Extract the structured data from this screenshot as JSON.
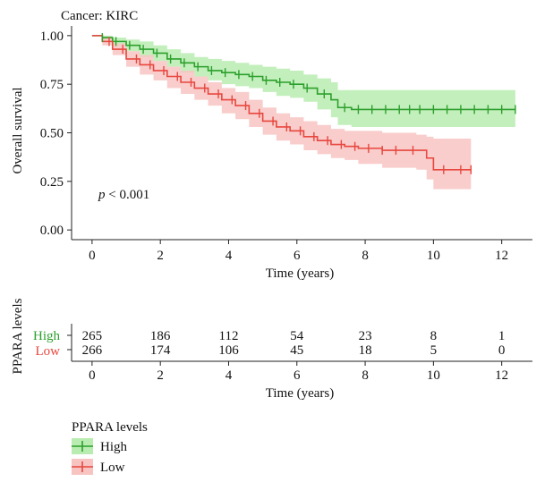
{
  "chart_data": {
    "type": "line",
    "title": "Cancer: KIRC",
    "xlabel": "Time (years)",
    "ylabel": "Overall survival",
    "xlim": [
      -0.6,
      12.9
    ],
    "ylim": [
      -0.05,
      1.05
    ],
    "x_ticks": [
      "0",
      "2",
      "4",
      "6",
      "8",
      "10",
      "12"
    ],
    "y_ticks": [
      "0.00",
      "0.25",
      "0.50",
      "0.75",
      "1.00"
    ],
    "annotation_p": "p",
    "annotation_rest": " < 0.001",
    "colors": {
      "High": "#2ca02c",
      "Low": "#e8473f",
      "High_ci": "#b9ecb0",
      "Low_ci": "#f7c4c2"
    },
    "series": [
      {
        "name": "High",
        "x": [
          0,
          0.3,
          0.6,
          1.0,
          1.4,
          1.8,
          2.2,
          2.6,
          3.0,
          3.4,
          3.8,
          4.2,
          4.6,
          5.0,
          5.4,
          5.8,
          6.2,
          6.6,
          7.0,
          7.2,
          7.6,
          8.0,
          9.0,
          10.0,
          11.0,
          12.4
        ],
        "y": [
          1.0,
          0.99,
          0.97,
          0.95,
          0.93,
          0.91,
          0.88,
          0.86,
          0.84,
          0.82,
          0.81,
          0.8,
          0.79,
          0.77,
          0.76,
          0.75,
          0.73,
          0.7,
          0.67,
          0.63,
          0.62,
          0.62,
          0.62,
          0.62,
          0.62,
          0.62
        ],
        "ci_upper": [
          1.0,
          1.0,
          0.99,
          0.98,
          0.97,
          0.95,
          0.93,
          0.91,
          0.89,
          0.88,
          0.87,
          0.86,
          0.85,
          0.84,
          0.83,
          0.82,
          0.8,
          0.78,
          0.76,
          0.72,
          0.72,
          0.72,
          0.72,
          0.72,
          0.72,
          0.72
        ],
        "ci_lower": [
          1.0,
          0.97,
          0.95,
          0.92,
          0.89,
          0.87,
          0.84,
          0.81,
          0.79,
          0.77,
          0.75,
          0.74,
          0.73,
          0.71,
          0.69,
          0.68,
          0.66,
          0.62,
          0.58,
          0.54,
          0.53,
          0.53,
          0.53,
          0.53,
          0.53,
          0.53
        ],
        "censor_x": [
          0.3,
          0.7,
          1.1,
          1.5,
          1.9,
          2.3,
          2.7,
          3.1,
          3.5,
          3.9,
          4.3,
          4.7,
          5.1,
          5.5,
          5.9,
          6.3,
          6.8,
          7.4,
          7.8,
          8.2,
          8.6,
          9.0,
          9.3,
          9.6,
          10.0,
          10.4,
          10.8,
          11.2,
          11.6,
          12.0,
          12.4
        ],
        "at_risk": [
          "265",
          "186",
          "112",
          "54",
          "23",
          "8",
          "1"
        ]
      },
      {
        "name": "Low",
        "x": [
          0,
          0.3,
          0.6,
          1.0,
          1.4,
          1.8,
          2.2,
          2.6,
          3.0,
          3.4,
          3.8,
          4.2,
          4.6,
          5.0,
          5.4,
          5.8,
          6.2,
          6.6,
          7.0,
          7.4,
          7.8,
          8.5,
          9.0,
          9.5,
          9.8,
          10.0,
          11.1
        ],
        "y": [
          1.0,
          0.97,
          0.93,
          0.88,
          0.85,
          0.82,
          0.79,
          0.76,
          0.73,
          0.7,
          0.67,
          0.64,
          0.6,
          0.56,
          0.53,
          0.51,
          0.48,
          0.46,
          0.44,
          0.43,
          0.42,
          0.41,
          0.41,
          0.41,
          0.37,
          0.31,
          0.31
        ],
        "ci_upper": [
          1.0,
          0.99,
          0.96,
          0.92,
          0.9,
          0.87,
          0.84,
          0.82,
          0.79,
          0.76,
          0.73,
          0.71,
          0.67,
          0.63,
          0.6,
          0.58,
          0.56,
          0.54,
          0.52,
          0.51,
          0.51,
          0.5,
          0.5,
          0.49,
          0.48,
          0.47,
          0.47
        ],
        "ci_lower": [
          1.0,
          0.95,
          0.9,
          0.84,
          0.8,
          0.77,
          0.73,
          0.7,
          0.67,
          0.64,
          0.6,
          0.57,
          0.53,
          0.49,
          0.46,
          0.44,
          0.41,
          0.39,
          0.37,
          0.36,
          0.34,
          0.32,
          0.32,
          0.31,
          0.26,
          0.21,
          0.21
        ],
        "censor_x": [
          0.5,
          0.9,
          1.3,
          1.7,
          2.1,
          2.5,
          2.9,
          3.3,
          3.7,
          4.1,
          4.5,
          4.9,
          5.3,
          5.7,
          6.1,
          6.5,
          6.9,
          7.3,
          7.7,
          8.1,
          8.5,
          8.9,
          9.4,
          10.3,
          10.8,
          11.1
        ],
        "at_risk": [
          "266",
          "174",
          "106",
          "45",
          "18",
          "5",
          "0"
        ]
      }
    ],
    "risk_table": {
      "ylabel": "PPARA levels",
      "xlabel": "Time (years)",
      "row_labels": [
        "High",
        "Low"
      ]
    },
    "legend": {
      "title": "PPARA levels",
      "placement": "bottom-left",
      "entries": [
        "High",
        "Low"
      ]
    }
  }
}
